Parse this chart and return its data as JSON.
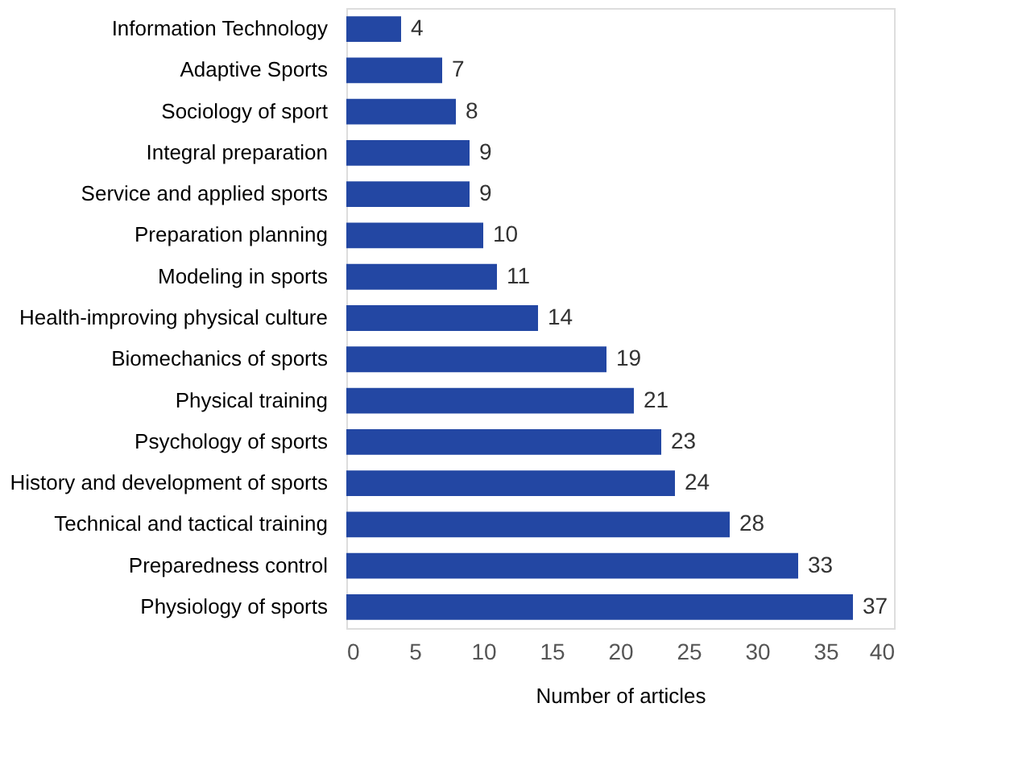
{
  "chart_data": {
    "type": "bar",
    "orientation": "horizontal",
    "xlabel": "Number of articles",
    "categories": [
      "Information Technology",
      "Adaptive Sports",
      "Sociology of sport",
      "Integral preparation",
      "Service and applied sports",
      "Preparation planning",
      "Modeling in sports",
      "Health-improving physical culture",
      "Biomechanics of sports",
      "Physical training",
      "Psychology of sports",
      "History and development of sports",
      "Technical and tactical training",
      "Preparedness control",
      "Physiology of sports"
    ],
    "values": [
      4,
      7,
      8,
      9,
      9,
      10,
      11,
      14,
      19,
      21,
      23,
      24,
      28,
      33,
      37
    ],
    "color": "#2347a3",
    "xlim": [
      0,
      40
    ],
    "xticks": [
      0,
      5,
      10,
      15,
      20,
      25,
      30,
      35,
      40
    ],
    "data_labels": true,
    "grid": false
  }
}
